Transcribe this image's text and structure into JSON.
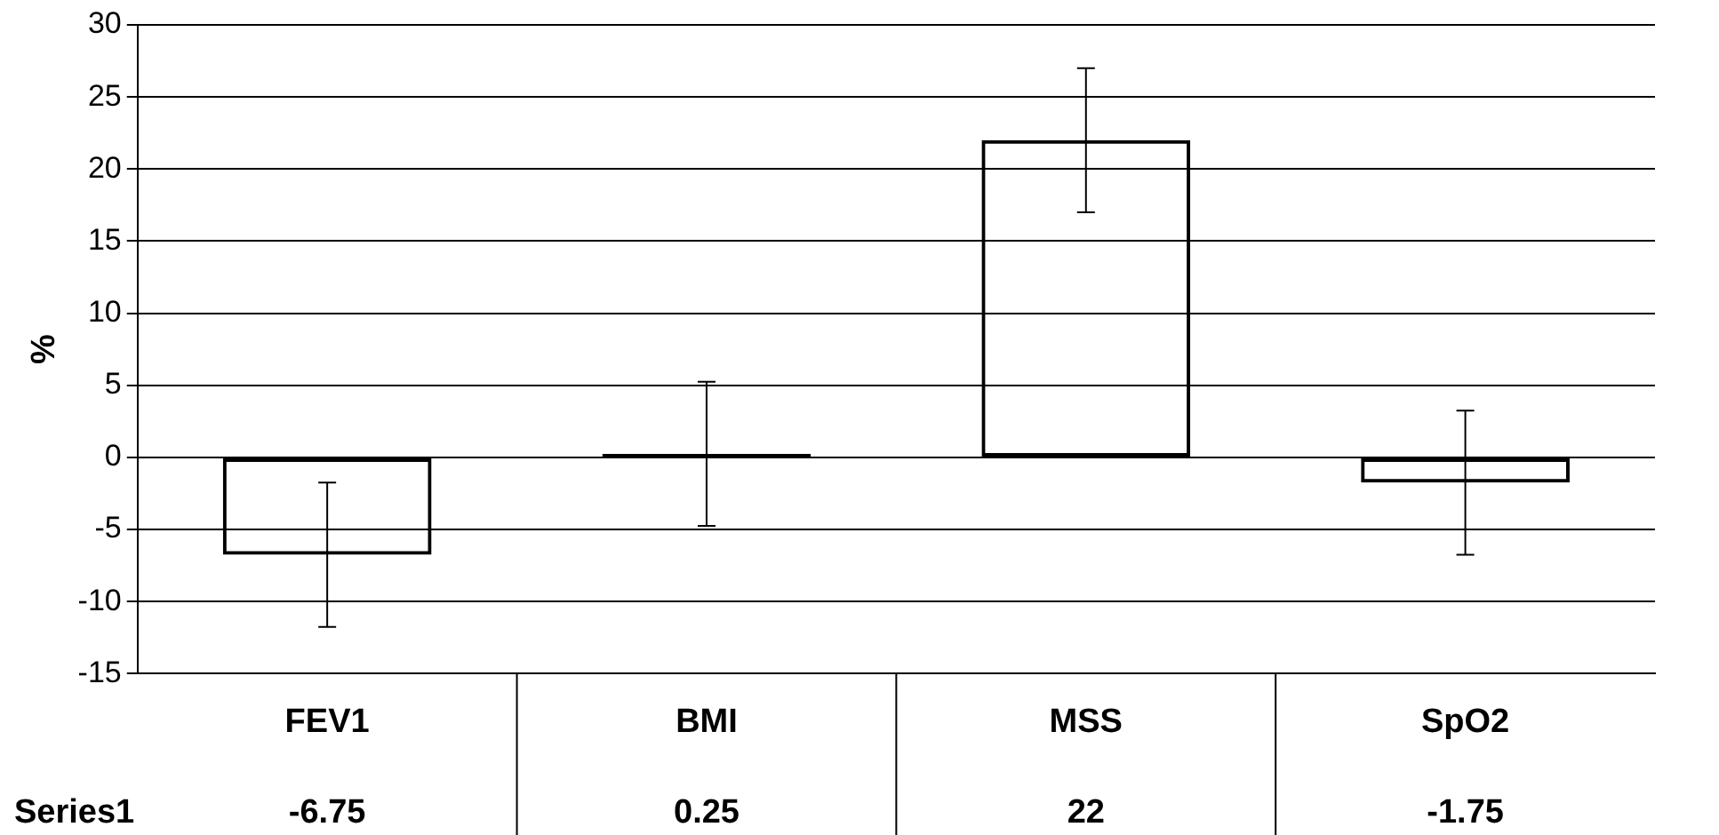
{
  "chart_data": {
    "type": "bar",
    "ylabel": "%",
    "categories": [
      "FEV1",
      "BMI",
      "MSS",
      "SpO2"
    ],
    "series": [
      {
        "name": "Series1",
        "color": "#000000",
        "values": [
          -6.75,
          0.25,
          22,
          -1.75
        ],
        "errors": [
          5,
          5,
          5,
          5
        ]
      }
    ],
    "ylim": [
      -15,
      30
    ],
    "yticks": [
      -15,
      -10,
      -5,
      0,
      5,
      10,
      15,
      20,
      25,
      30
    ],
    "grid": "y",
    "legend": false,
    "data_labels": true
  }
}
